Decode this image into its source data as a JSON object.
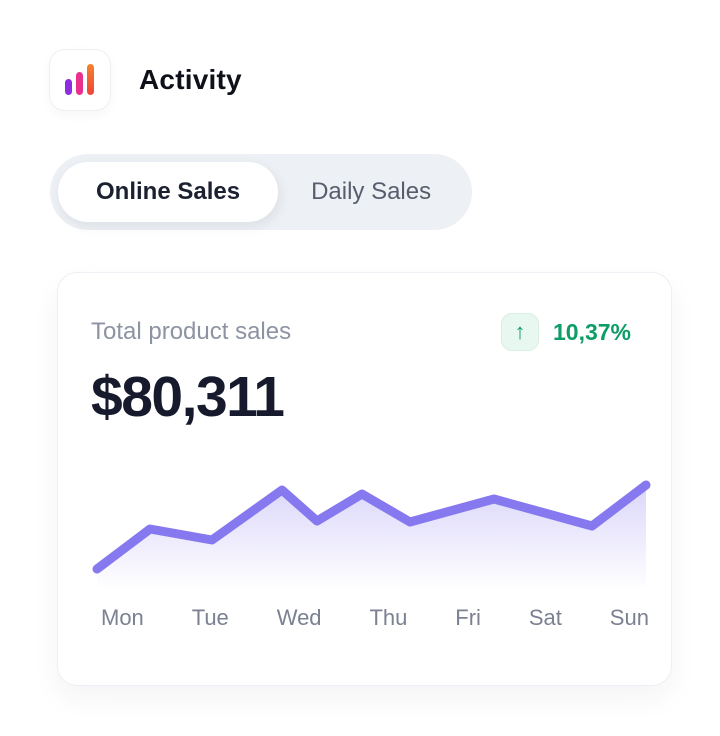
{
  "header": {
    "title": "Activity",
    "icon": {
      "name": "bar-chart-icon",
      "bar_colors": [
        "#8E2DE2",
        "#E8308C"
      ],
      "bar3_gradient": [
        "#F5822C",
        "#EF4437"
      ]
    }
  },
  "tabs": {
    "items": [
      {
        "label": "Online Sales",
        "active": true
      },
      {
        "label": "Daily Sales",
        "active": false
      }
    ]
  },
  "card": {
    "stat_label": "Total product sales",
    "stat_value": "$80,311",
    "change": {
      "value": "10,37%",
      "direction": "up",
      "icon": "arrow-up-icon",
      "glyph": "↑"
    }
  },
  "chart_data": {
    "type": "area",
    "title": "Total product sales (weekly trend)",
    "categories": [
      "Mon",
      "Tue",
      "Wed",
      "Thu",
      "Fri",
      "Sat",
      "Sun"
    ],
    "values_normalized_0_100": [
      20,
      52,
      43,
      82,
      58,
      79,
      57,
      75,
      54,
      86
    ],
    "note": "no y-axis shown; 10 polyline vertices normalized to plot height",
    "points": [
      [
        7,
        102
      ],
      [
        60,
        62
      ],
      [
        122,
        73
      ],
      [
        192,
        23
      ],
      [
        227,
        54
      ],
      [
        272,
        27
      ],
      [
        320,
        55
      ],
      [
        404,
        32
      ],
      [
        502,
        59
      ],
      [
        556,
        18
      ]
    ],
    "viewbox_size": [
      564,
      128
    ],
    "line_color": "#8678EE",
    "fill_gradient": [
      "rgba(134,120,238,0.30)",
      "rgba(134,120,238,0)"
    ],
    "grid": false,
    "legend": "none",
    "xlabel": "",
    "ylabel": ""
  },
  "colors": {
    "page_bg": "#FFFFFF",
    "tabs_bg": "#EDF0F4",
    "active_tab_bg": "#FFFFFF",
    "active_tab_text": "#1B2130",
    "inactive_tab_text": "#565E6E",
    "card_border": "#ECEFF3",
    "stat_label_text": "#8D93A2",
    "stat_value_text": "#161A2C",
    "positive_green": "#0D9D67",
    "badge_bg": "#E8F7EF",
    "axis_label_text": "#7B8191",
    "accent_purple": "#8678EE"
  }
}
